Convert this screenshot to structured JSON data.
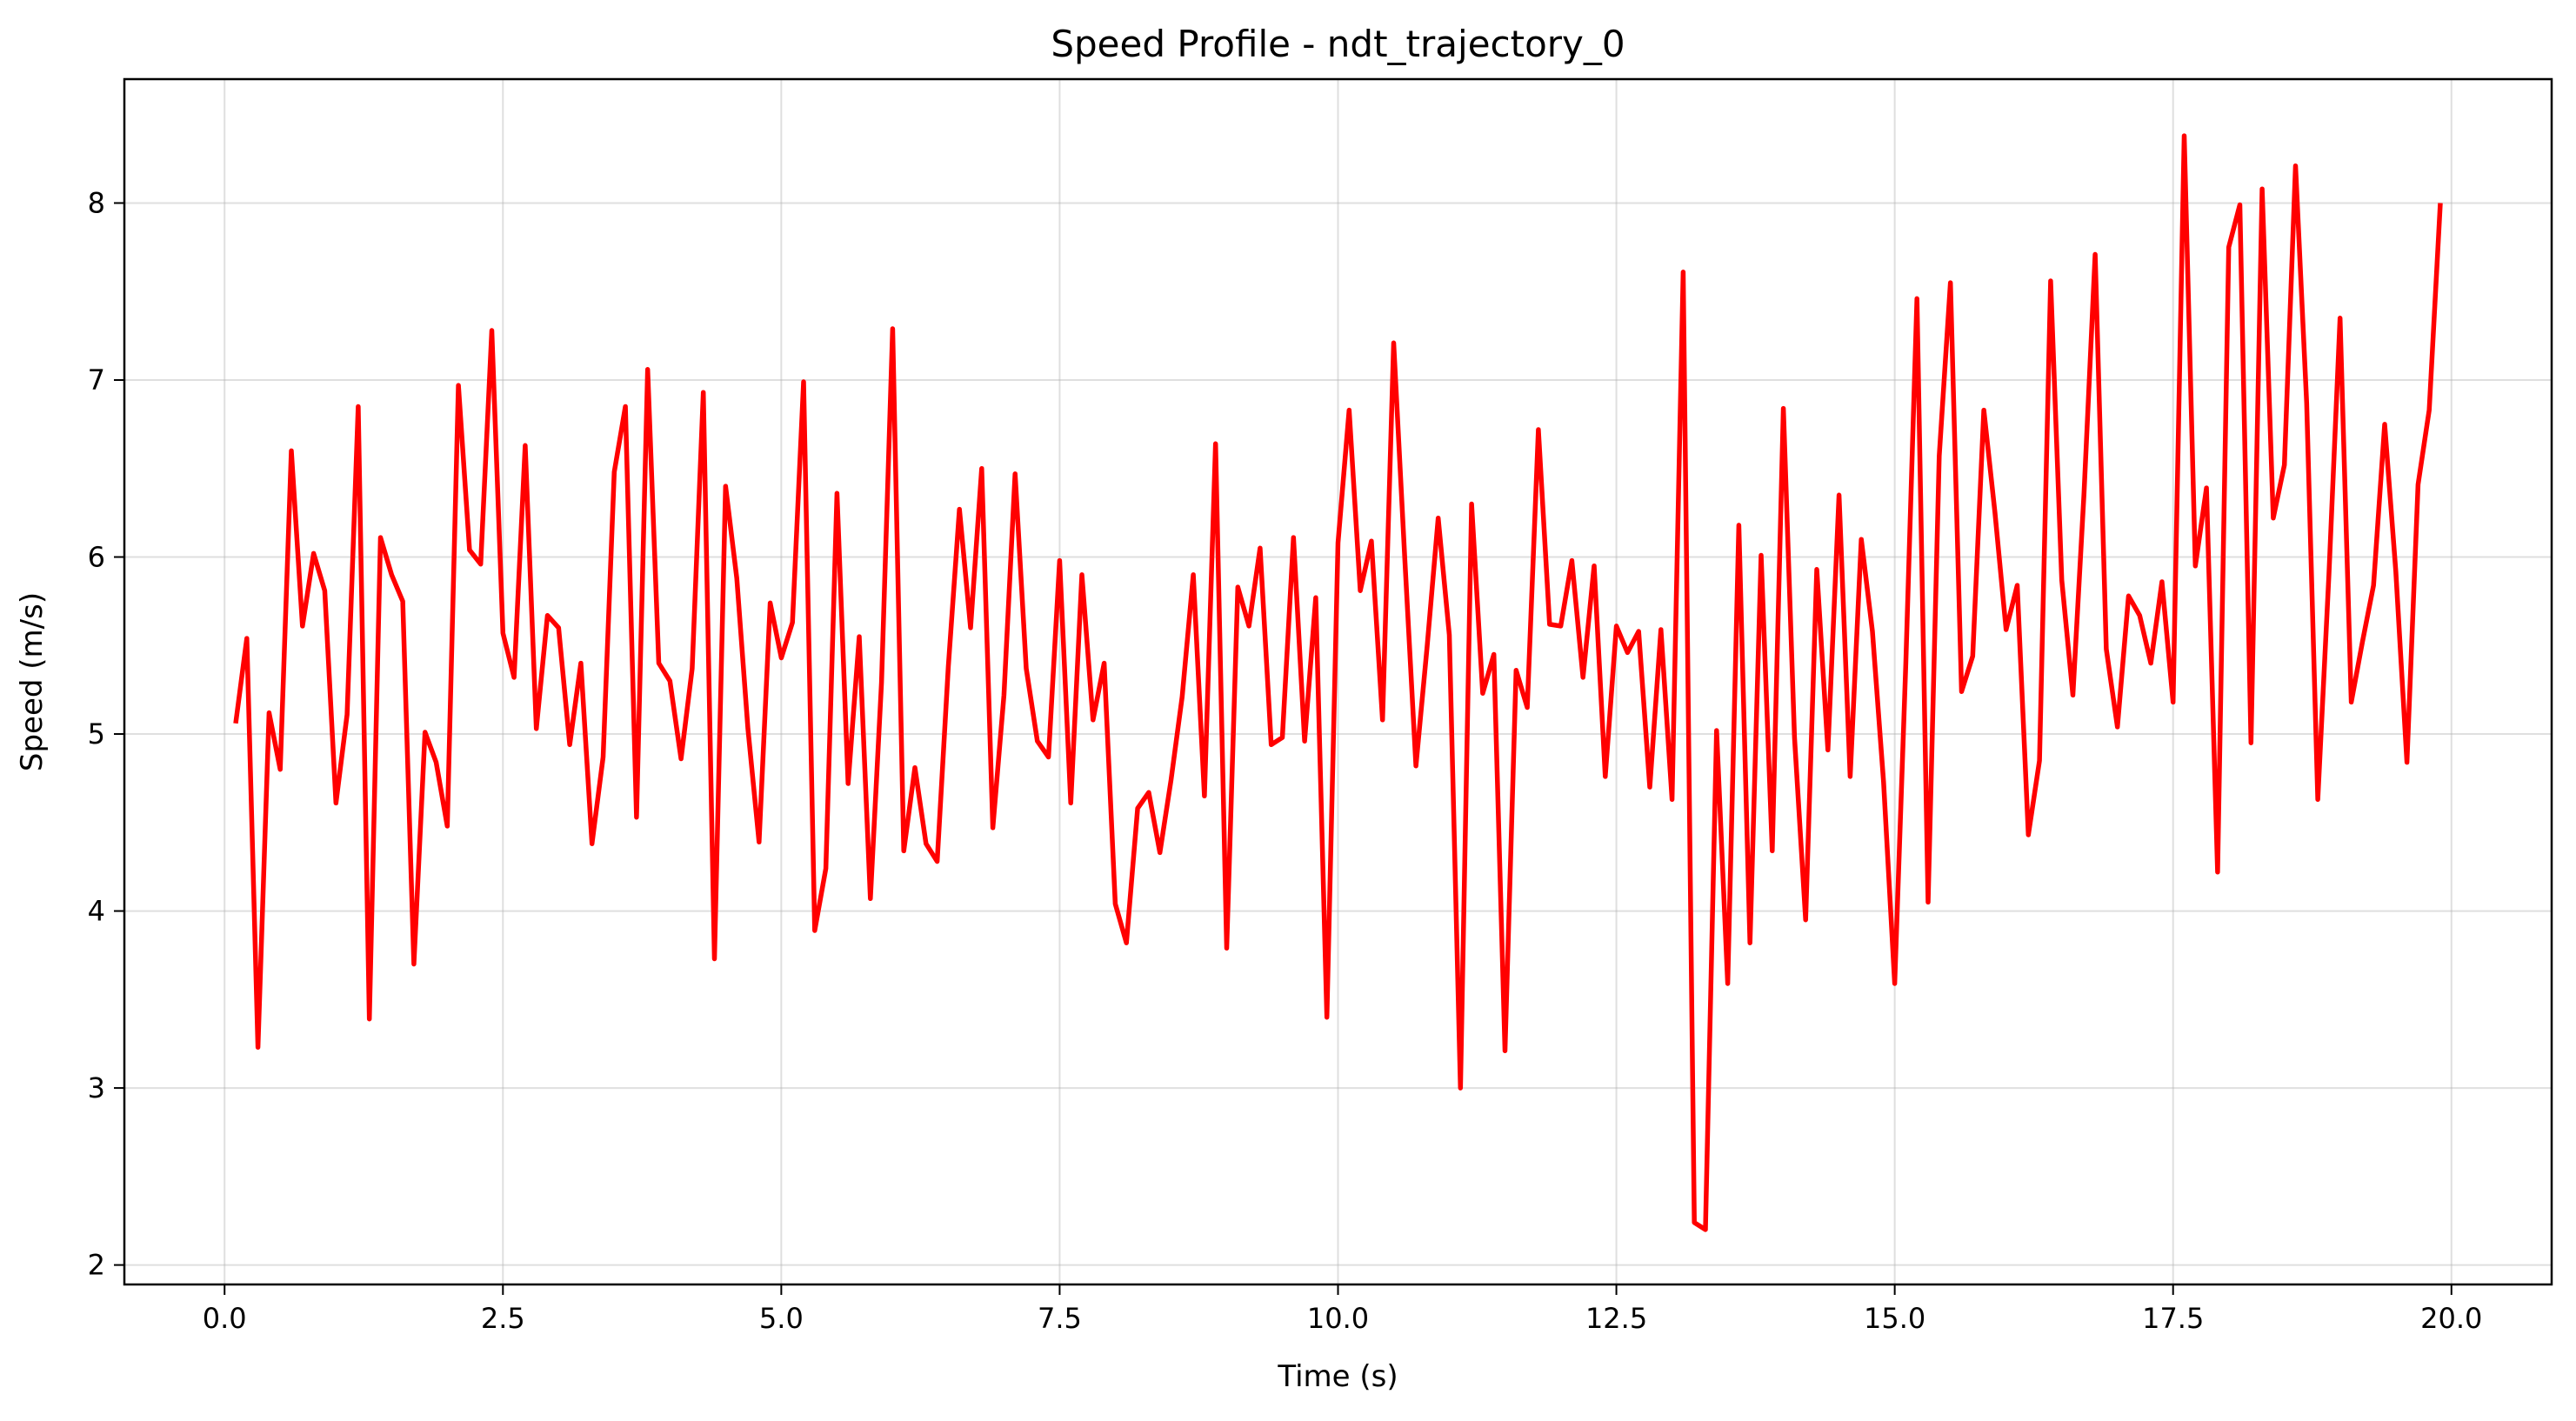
{
  "chart_data": {
    "type": "line",
    "title": "Speed Profile - ndt_trajectory_0",
    "xlabel": "Time (s)",
    "ylabel": "Speed (m/s)",
    "xlim": [
      -0.9,
      20.9
    ],
    "ylim": [
      1.89,
      8.7
    ],
    "xticks": [
      0.0,
      2.5,
      5.0,
      7.5,
      10.0,
      12.5,
      15.0,
      17.5,
      20.0
    ],
    "xtick_labels": [
      "0.0",
      "2.5",
      "5.0",
      "7.5",
      "10.0",
      "12.5",
      "15.0",
      "17.5",
      "20.0"
    ],
    "yticks": [
      2,
      3,
      4,
      5,
      6,
      7,
      8
    ],
    "ytick_labels": [
      "2",
      "3",
      "4",
      "5",
      "6",
      "7",
      "8"
    ],
    "grid": true,
    "color": "#ff0000",
    "series": [
      {
        "x": [
          0.1,
          0.2,
          0.3,
          0.4,
          0.5,
          0.6,
          0.7,
          0.8,
          0.9,
          1.0,
          1.1,
          1.2,
          1.3,
          1.4,
          1.5,
          1.6,
          1.7,
          1.8,
          1.9,
          2.0,
          2.1,
          2.2,
          2.3,
          2.4,
          2.5,
          2.6,
          2.7,
          2.8,
          2.9,
          3.0,
          3.1,
          3.2,
          3.3,
          3.4,
          3.5,
          3.6,
          3.7,
          3.8,
          3.9,
          4.0,
          4.1,
          4.2,
          4.3,
          4.4,
          4.5,
          4.6,
          4.7,
          4.8,
          4.9,
          5.0,
          5.1,
          5.2,
          5.3,
          5.4,
          5.5,
          5.6,
          5.7,
          5.8,
          5.9,
          6.0,
          6.1,
          6.2,
          6.3,
          6.4,
          6.5,
          6.6,
          6.7,
          6.8,
          6.9,
          7.0,
          7.1,
          7.2,
          7.3,
          7.4,
          7.5,
          7.6,
          7.7,
          7.8,
          7.9,
          8.0,
          8.1,
          8.2,
          8.3,
          8.4,
          8.5,
          8.6,
          8.7,
          8.8,
          8.9,
          9.0,
          9.1,
          9.2,
          9.3,
          9.4,
          9.5,
          9.6,
          9.7,
          9.8,
          9.9,
          10.0,
          10.1,
          10.2,
          10.3,
          10.4,
          10.5,
          10.6,
          10.7,
          10.8,
          10.9,
          11.0,
          11.1,
          11.2,
          11.3,
          11.4,
          11.5,
          11.6,
          11.7,
          11.8,
          11.9,
          12.0,
          12.1,
          12.2,
          12.3,
          12.4,
          12.5,
          12.6,
          12.7,
          12.8,
          12.9,
          13.0,
          13.1,
          13.2,
          13.3,
          13.4,
          13.5,
          13.6,
          13.7,
          13.8,
          13.9,
          14.0,
          14.1,
          14.2,
          14.3,
          14.4,
          14.5,
          14.6,
          14.7,
          14.8,
          14.9,
          15.0,
          15.1,
          15.2,
          15.3,
          15.4,
          15.5,
          15.6,
          15.7,
          15.8,
          15.9,
          16.0,
          16.1,
          16.2,
          16.3,
          16.4,
          16.5,
          16.6,
          16.7,
          16.8,
          16.9,
          17.0,
          17.1,
          17.2,
          17.3,
          17.4,
          17.5,
          17.6,
          17.7,
          17.8,
          17.9,
          18.0,
          18.1,
          18.2,
          18.3,
          18.4,
          18.5,
          18.6,
          18.7,
          18.8,
          18.9,
          19.0,
          19.1,
          19.2,
          19.3,
          19.4,
          19.5,
          19.6,
          19.7,
          19.8,
          19.9
        ],
        "y": [
          5.06,
          5.54,
          3.23,
          5.12,
          4.8,
          6.6,
          5.61,
          6.02,
          5.81,
          4.61,
          5.11,
          6.85,
          3.39,
          6.11,
          5.9,
          5.75,
          3.7,
          5.01,
          4.84,
          4.48,
          6.97,
          6.04,
          5.96,
          7.28,
          5.57,
          5.32,
          6.63,
          5.03,
          5.67,
          5.6,
          4.94,
          5.4,
          4.38,
          4.87,
          6.48,
          6.85,
          4.53,
          7.06,
          5.4,
          5.3,
          4.86,
          5.37,
          6.93,
          3.73,
          6.4,
          5.88,
          5.03,
          4.39,
          5.74,
          5.43,
          5.63,
          6.99,
          3.89,
          4.24,
          6.36,
          4.72,
          5.55,
          4.07,
          5.29,
          7.29,
          4.34,
          4.81,
          4.38,
          4.28,
          5.38,
          6.27,
          5.6,
          6.5,
          4.47,
          5.22,
          6.47,
          5.37,
          4.96,
          4.87,
          5.98,
          4.61,
          5.9,
          5.08,
          5.4,
          4.04,
          3.82,
          4.58,
          4.67,
          4.33,
          4.74,
          5.21,
          5.9,
          4.65,
          6.64,
          3.79,
          5.83,
          5.61,
          6.05,
          4.94,
          4.98,
          6.11,
          4.96,
          5.77,
          3.4,
          6.08,
          6.83,
          5.81,
          6.09,
          5.08,
          7.21,
          5.99,
          4.82,
          5.49,
          6.22,
          5.56,
          3.0,
          6.3,
          5.23,
          5.45,
          3.21,
          5.36,
          5.15,
          6.72,
          5.62,
          5.61,
          5.98,
          5.32,
          5.95,
          4.76,
          5.61,
          5.46,
          5.58,
          4.7,
          5.59,
          4.63,
          7.61,
          2.24,
          2.2,
          5.02,
          3.59,
          6.18,
          3.82,
          6.01,
          4.34,
          6.84,
          4.98,
          3.95,
          5.93,
          4.91,
          6.35,
          4.76,
          6.1,
          5.58,
          4.73,
          3.59,
          5.4,
          7.46,
          4.05,
          6.57,
          7.55,
          5.24,
          5.44,
          6.83,
          6.25,
          5.59,
          5.84,
          4.43,
          4.85,
          7.56,
          5.87,
          5.22,
          6.36,
          7.71,
          5.48,
          5.04,
          5.78,
          5.67,
          5.4,
          5.86,
          5.18,
          8.38,
          5.95,
          6.39,
          4.22,
          7.75,
          7.99,
          4.95,
          8.08,
          6.22,
          6.52,
          8.21,
          6.87,
          4.63,
          5.9,
          7.35,
          5.18,
          5.52,
          5.84,
          6.75,
          5.92,
          4.84,
          6.41,
          6.83,
          8.0
        ]
      }
    ]
  }
}
